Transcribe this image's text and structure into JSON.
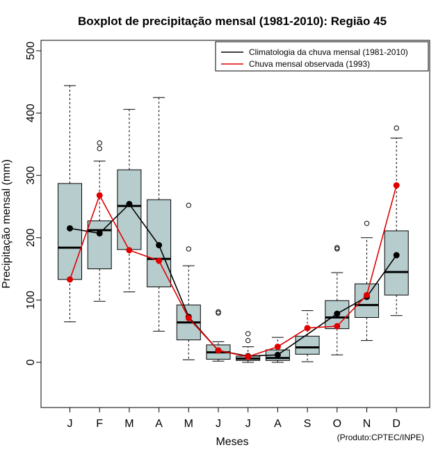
{
  "chart_data": {
    "type": "boxplot",
    "title": "Boxplot de precipitação mensal (1981-2010): Região 45",
    "xlabel": "Meses",
    "ylabel": "Precipitação mensal (mm)",
    "ylim": [
      -70,
      515
    ],
    "yticks": [
      0,
      100,
      200,
      300,
      400,
      500
    ],
    "categories": [
      "J",
      "F",
      "M",
      "A",
      "M",
      "J",
      "J",
      "A",
      "S",
      "O",
      "N",
      "D"
    ],
    "boxes": [
      {
        "min": 65,
        "q1": 133,
        "median": 184,
        "q3": 287,
        "max": 444,
        "outliers": []
      },
      {
        "min": 98,
        "q1": 150,
        "median": 212,
        "q3": 227,
        "max": 323,
        "outliers": [
          343,
          352
        ]
      },
      {
        "min": 113,
        "q1": 181,
        "median": 251,
        "q3": 309,
        "max": 406,
        "outliers": []
      },
      {
        "min": 50,
        "q1": 121,
        "median": 166,
        "q3": 261,
        "max": 425,
        "outliers": []
      },
      {
        "min": 4,
        "q1": 36,
        "median": 64,
        "q3": 92,
        "max": 155,
        "outliers": [
          182,
          252
        ]
      },
      {
        "min": 2,
        "q1": 5,
        "median": 16,
        "q3": 28,
        "max": 33,
        "outliers": [
          79,
          81
        ]
      },
      {
        "min": 0,
        "q1": 3,
        "median": 6,
        "q3": 10,
        "max": 25,
        "outliers": [
          35,
          46
        ]
      },
      {
        "min": 0,
        "q1": 3,
        "median": 7,
        "q3": 20,
        "max": 40,
        "outliers": []
      },
      {
        "min": 1,
        "q1": 13,
        "median": 24,
        "q3": 42,
        "max": 83,
        "outliers": []
      },
      {
        "min": 12,
        "q1": 54,
        "median": 72,
        "q3": 99,
        "max": 144,
        "outliers": [
          182,
          184
        ]
      },
      {
        "min": 35,
        "q1": 72,
        "median": 92,
        "q3": 126,
        "max": 200,
        "outliers": [
          223
        ]
      },
      {
        "min": 75,
        "q1": 108,
        "median": 145,
        "q3": 211,
        "max": 360,
        "outliers": [
          376
        ]
      }
    ],
    "series": [
      {
        "name": "Climatologia da chuva mensal (1981-2010)",
        "color": "#000000",
        "values": [
          215,
          207,
          254,
          188,
          73,
          19,
          10,
          12,
          null,
          78,
          105,
          172
        ]
      },
      {
        "name": "Chuva mensal observada (1993)",
        "color": "#e00000",
        "values": [
          133,
          268,
          180,
          163,
          71,
          19,
          9,
          25,
          55,
          58,
          108,
          284
        ]
      }
    ],
    "legend_position": "top-right",
    "caption": "(Produto:CPTEC/INPE)",
    "box_fill": "#b7cdcd"
  }
}
